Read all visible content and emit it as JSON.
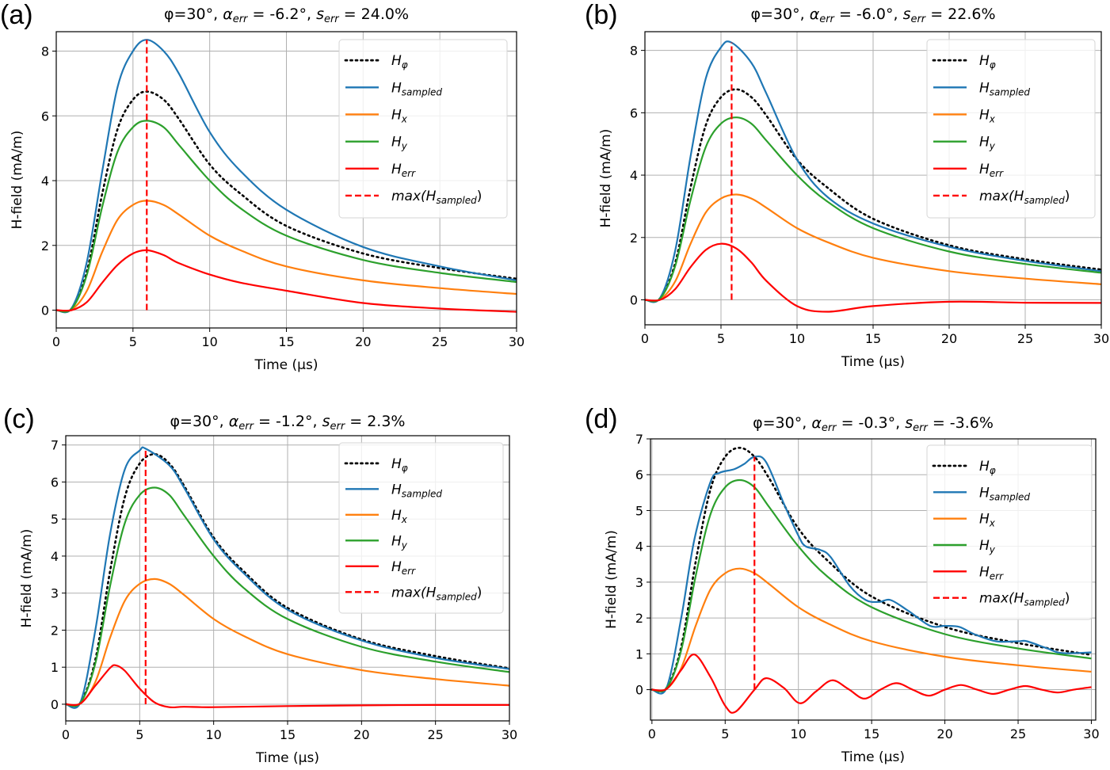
{
  "figure": {
    "colors": {
      "H_phi": "#000000",
      "H_sampled": "#1f77b4",
      "H_x": "#ff7f0e",
      "H_y": "#2ca02c",
      "H_err": "#ff0000",
      "max_line": "#ff0000",
      "grid": "#b0b0b0"
    }
  },
  "chart_data": [
    {
      "panel": "(a)",
      "type": "line",
      "title": "φ=30°, α_err = -6.2°, s_err = 24.0%",
      "title_parts": {
        "phi": "φ=30°, ",
        "alpha": "α",
        "alpha_sub": "err",
        "alpha_val": " = -6.2°, ",
        "s": "s",
        "s_sub": "err",
        "s_val": " = 24.0%"
      },
      "xlabel": "Time (µs)",
      "ylabel": "H-field (mA/m)",
      "xlim": [
        0,
        30
      ],
      "ylim": [
        -0.55,
        8.6
      ],
      "xticks": [
        0,
        5,
        10,
        15,
        20,
        25,
        30
      ],
      "yticks": [
        0,
        2,
        4,
        6,
        8
      ],
      "grid": true,
      "legend_position": "top-right",
      "legend": [
        {
          "main": "H",
          "sub": "φ",
          "style": "dotted",
          "series": "H_phi"
        },
        {
          "main": "H",
          "sub": "sampled",
          "style": "solid",
          "series": "H_sampled"
        },
        {
          "main": "H",
          "sub": "x",
          "style": "solid",
          "series": "H_x"
        },
        {
          "main": "H",
          "sub": "y",
          "style": "solid",
          "series": "H_y"
        },
        {
          "main": "H",
          "sub": "err",
          "style": "solid",
          "series": "H_err"
        },
        {
          "main": "max(H",
          "sub": "sampled",
          "tail": ")",
          "style": "dashed",
          "series": "max_line"
        }
      ],
      "max_time_us": 5.9,
      "series": [
        {
          "name": "H_phi",
          "x": [
            0,
            1,
            2,
            3,
            4,
            5,
            5.9,
            7,
            8,
            10,
            12,
            15,
            20,
            25,
            30
          ],
          "y": [
            0,
            0.05,
            1.2,
            3.6,
            5.6,
            6.5,
            6.75,
            6.5,
            5.9,
            4.5,
            3.6,
            2.6,
            1.75,
            1.3,
            0.97
          ]
        },
        {
          "name": "H_sampled",
          "x": [
            0,
            1,
            2,
            3,
            4,
            5,
            5.9,
            7,
            8,
            10,
            12,
            15,
            20,
            25,
            30
          ],
          "y": [
            0,
            0.06,
            1.5,
            4.3,
            6.9,
            8.0,
            8.35,
            8.0,
            7.3,
            5.5,
            4.3,
            3.1,
            1.95,
            1.35,
            0.92
          ]
        },
        {
          "name": "H_x",
          "x": [
            0,
            1,
            2,
            3,
            4,
            5,
            5.9,
            7,
            8,
            10,
            12,
            15,
            20,
            25,
            30
          ],
          "y": [
            0,
            0.02,
            0.6,
            1.8,
            2.8,
            3.25,
            3.38,
            3.25,
            2.95,
            2.3,
            1.85,
            1.35,
            0.92,
            0.68,
            0.5
          ]
        },
        {
          "name": "H_y",
          "x": [
            0,
            1,
            2,
            3,
            4,
            5,
            5.9,
            7,
            8,
            10,
            12,
            15,
            20,
            25,
            30
          ],
          "y": [
            0,
            0.04,
            1.1,
            3.2,
            4.9,
            5.65,
            5.85,
            5.65,
            5.1,
            4.0,
            3.15,
            2.3,
            1.55,
            1.15,
            0.87
          ]
        },
        {
          "name": "H_err",
          "x": [
            0,
            1,
            2,
            3,
            4,
            5,
            5.9,
            7,
            8,
            10,
            12,
            15,
            20,
            25,
            30
          ],
          "y": [
            0,
            0.0,
            0.25,
            0.85,
            1.4,
            1.75,
            1.85,
            1.7,
            1.45,
            1.1,
            0.85,
            0.6,
            0.22,
            0.05,
            -0.05
          ]
        }
      ]
    },
    {
      "panel": "(b)",
      "type": "line",
      "title": "φ=30°, α_err = -6.0°, s_err = 22.6%",
      "title_parts": {
        "phi": "φ=30°, ",
        "alpha": "α",
        "alpha_sub": "err",
        "alpha_val": " = -6.0°, ",
        "s": "s",
        "s_sub": "err",
        "s_val": " = 22.6%"
      },
      "xlabel": "Time (µs)",
      "ylabel": "H-field (mA/m)",
      "xlim": [
        0,
        30
      ],
      "ylim": [
        -0.8,
        8.6
      ],
      "xticks": [
        0,
        5,
        10,
        15,
        20,
        25,
        30
      ],
      "yticks": [
        0,
        2,
        4,
        6,
        8
      ],
      "grid": true,
      "legend_position": "top-right",
      "legend": [
        {
          "main": "H",
          "sub": "φ",
          "style": "dotted",
          "series": "H_phi"
        },
        {
          "main": "H",
          "sub": "sampled",
          "style": "solid",
          "series": "H_sampled"
        },
        {
          "main": "H",
          "sub": "x",
          "style": "solid",
          "series": "H_x"
        },
        {
          "main": "H",
          "sub": "y",
          "style": "solid",
          "series": "H_y"
        },
        {
          "main": "H",
          "sub": "err",
          "style": "solid",
          "series": "H_err"
        },
        {
          "main": "max(H",
          "sub": "sampled",
          "tail": ")",
          "style": "dashed",
          "series": "max_line"
        }
      ],
      "max_time_us": 5.7,
      "series": [
        {
          "name": "H_phi",
          "x": [
            0,
            1,
            2,
            3,
            4,
            5,
            6,
            7,
            8,
            10,
            12,
            15,
            20,
            25,
            30
          ],
          "y": [
            0,
            0.05,
            1.2,
            3.6,
            5.6,
            6.5,
            6.75,
            6.5,
            5.9,
            4.5,
            3.6,
            2.6,
            1.75,
            1.3,
            0.97
          ]
        },
        {
          "name": "H_sampled",
          "x": [
            0,
            1,
            2,
            3,
            4,
            5,
            5.7,
            7,
            8,
            10,
            12,
            15,
            20,
            25,
            30
          ],
          "y": [
            0,
            0.06,
            1.6,
            4.6,
            7.1,
            8.1,
            8.25,
            7.6,
            6.6,
            4.5,
            3.3,
            2.45,
            1.7,
            1.25,
            0.92
          ]
        },
        {
          "name": "H_x",
          "x": [
            0,
            1,
            2,
            3,
            4,
            5,
            6,
            7,
            8,
            10,
            12,
            15,
            20,
            25,
            30
          ],
          "y": [
            0,
            0.02,
            0.6,
            1.8,
            2.8,
            3.25,
            3.38,
            3.25,
            2.95,
            2.3,
            1.85,
            1.35,
            0.92,
            0.68,
            0.5
          ]
        },
        {
          "name": "H_y",
          "x": [
            0,
            1,
            2,
            3,
            4,
            5,
            6,
            7,
            8,
            10,
            12,
            15,
            20,
            25,
            30
          ],
          "y": [
            0,
            0.04,
            1.1,
            3.2,
            4.9,
            5.65,
            5.85,
            5.65,
            5.1,
            4.0,
            3.15,
            2.3,
            1.55,
            1.15,
            0.87
          ]
        },
        {
          "name": "H_err",
          "x": [
            0,
            1,
            2,
            3,
            4,
            5,
            6,
            7,
            8,
            10,
            12,
            15,
            20,
            25,
            30
          ],
          "y": [
            0,
            0.0,
            0.35,
            1.05,
            1.6,
            1.8,
            1.65,
            1.2,
            0.6,
            -0.2,
            -0.38,
            -0.2,
            -0.06,
            -0.09,
            -0.1
          ]
        }
      ]
    },
    {
      "panel": "(c)",
      "type": "line",
      "title": "φ=30°, α_err = -1.2°, s_err = 2.3%",
      "title_parts": {
        "phi": "φ=30°, ",
        "alpha": "α",
        "alpha_sub": "err",
        "alpha_val": " = -1.2°, ",
        "s": "s",
        "s_sub": "err",
        "s_val": " = 2.3%"
      },
      "xlabel": "Time (µs)",
      "ylabel": "H-field (mA/m)",
      "xlim": [
        0,
        30
      ],
      "ylim": [
        -0.45,
        7.25
      ],
      "xticks": [
        0,
        5,
        10,
        15,
        20,
        25,
        30
      ],
      "yticks": [
        0,
        1,
        2,
        3,
        4,
        5,
        6,
        7
      ],
      "grid": true,
      "legend_position": "top-right",
      "legend": [
        {
          "main": "H",
          "sub": "φ",
          "style": "dotted",
          "series": "H_phi"
        },
        {
          "main": "H",
          "sub": "sampled",
          "style": "solid",
          "series": "H_sampled"
        },
        {
          "main": "H",
          "sub": "x",
          "style": "solid",
          "series": "H_x"
        },
        {
          "main": "H",
          "sub": "y",
          "style": "solid",
          "series": "H_y"
        },
        {
          "main": "H",
          "sub": "err",
          "style": "solid",
          "series": "H_err"
        },
        {
          "main": "max(H",
          "sub": "sampled",
          "tail": ")",
          "style": "dashed",
          "series": "max_line"
        }
      ],
      "max_time_us": 5.4,
      "series": [
        {
          "name": "H_phi",
          "x": [
            0,
            1,
            2,
            3,
            4,
            5,
            6,
            7,
            8,
            10,
            12,
            15,
            20,
            25,
            30
          ],
          "y": [
            0,
            0.05,
            1.2,
            3.6,
            5.6,
            6.5,
            6.75,
            6.5,
            5.9,
            4.5,
            3.6,
            2.6,
            1.75,
            1.3,
            0.97
          ]
        },
        {
          "name": "H_sampled",
          "x": [
            0,
            1,
            2,
            3,
            4,
            5,
            5.4,
            7,
            8,
            10,
            12,
            15,
            20,
            25,
            30
          ],
          "y": [
            0,
            0.06,
            2.0,
            4.6,
            6.35,
            6.85,
            6.9,
            6.45,
            5.85,
            4.45,
            3.55,
            2.55,
            1.72,
            1.25,
            0.95
          ]
        },
        {
          "name": "H_x",
          "x": [
            0,
            1,
            2,
            3,
            4,
            5,
            6,
            7,
            8,
            10,
            12,
            15,
            20,
            25,
            30
          ],
          "y": [
            0,
            0.02,
            0.6,
            1.8,
            2.8,
            3.25,
            3.38,
            3.25,
            2.95,
            2.3,
            1.85,
            1.35,
            0.92,
            0.68,
            0.5
          ]
        },
        {
          "name": "H_y",
          "x": [
            0,
            1,
            2,
            3,
            4,
            5,
            6,
            7,
            8,
            10,
            12,
            15,
            20,
            25,
            30
          ],
          "y": [
            0,
            0.04,
            1.1,
            3.2,
            4.9,
            5.65,
            5.85,
            5.65,
            5.1,
            4.0,
            3.15,
            2.3,
            1.55,
            1.15,
            0.87
          ]
        },
        {
          "name": "H_err",
          "x": [
            0,
            1,
            2,
            3,
            3.4,
            4,
            5,
            6,
            7,
            8,
            10,
            15,
            20,
            25,
            30
          ],
          "y": [
            0,
            0.02,
            0.5,
            0.98,
            1.05,
            0.9,
            0.42,
            0.05,
            -0.08,
            -0.07,
            -0.08,
            -0.05,
            -0.03,
            -0.02,
            -0.02
          ]
        }
      ]
    },
    {
      "panel": "(d)",
      "type": "line",
      "title": "φ=30°, α_err = -0.3°, s_err = -3.6%",
      "title_parts": {
        "phi": "φ=30°, ",
        "alpha": "α",
        "alpha_sub": "err",
        "alpha_val": " = -0.3°, ",
        "s": "s",
        "s_sub": "err",
        "s_val": " = -3.6%"
      },
      "xlabel": "Time (µs)",
      "ylabel": "H-field (mA/m)",
      "xlim": [
        -0.1,
        30.3
      ],
      "ylim": [
        -0.85,
        7.0
      ],
      "xticks": [
        0,
        5,
        10,
        15,
        20,
        25,
        30
      ],
      "yticks": [
        0,
        1,
        2,
        3,
        4,
        5,
        6,
        7
      ],
      "grid": true,
      "legend_position": "top-right",
      "legend": [
        {
          "main": "H",
          "sub": "φ",
          "style": "dotted",
          "series": "H_phi"
        },
        {
          "main": "H",
          "sub": "sampled",
          "style": "solid",
          "series": "H_sampled"
        },
        {
          "main": "H",
          "sub": "x",
          "style": "solid",
          "series": "H_x"
        },
        {
          "main": "H",
          "sub": "y",
          "style": "solid",
          "series": "H_y"
        },
        {
          "main": "H",
          "sub": "err",
          "style": "solid",
          "series": "H_err"
        },
        {
          "main": "max(H",
          "sub": "sampled",
          "tail": ")",
          "style": "dashed",
          "series": "max_line"
        }
      ],
      "max_time_us": 7.0,
      "series": [
        {
          "name": "H_phi",
          "x": [
            0,
            1,
            2,
            3,
            4,
            5,
            6,
            7,
            8,
            10,
            12,
            15,
            20,
            25,
            30
          ],
          "y": [
            0,
            0.05,
            1.2,
            3.6,
            5.6,
            6.5,
            6.75,
            6.5,
            5.9,
            4.5,
            3.6,
            2.6,
            1.75,
            1.3,
            0.97
          ]
        },
        {
          "name": "H_sampled",
          "x": [
            0,
            1,
            2,
            2.9,
            4,
            4.6,
            5.6,
            6.3,
            7,
            7.8,
            9,
            10,
            10.5,
            11.5,
            12.2,
            13.5,
            14.6,
            15.5,
            16.3,
            17.5,
            19,
            20,
            21,
            22,
            23.5,
            25,
            25.6,
            27,
            28,
            30
          ],
          "y": [
            0,
            0.05,
            2.0,
            4.2,
            5.8,
            6.05,
            6.15,
            6.3,
            6.5,
            6.35,
            5.2,
            4.3,
            4.0,
            3.9,
            3.7,
            2.9,
            2.5,
            2.45,
            2.5,
            2.2,
            1.78,
            1.78,
            1.75,
            1.55,
            1.35,
            1.35,
            1.35,
            1.15,
            1.02,
            1.04
          ]
        },
        {
          "name": "H_x",
          "x": [
            0,
            1,
            2,
            3,
            4,
            5,
            6,
            7,
            8,
            10,
            12,
            15,
            20,
            25,
            30
          ],
          "y": [
            0,
            0.02,
            0.6,
            1.8,
            2.8,
            3.25,
            3.38,
            3.25,
            2.95,
            2.3,
            1.85,
            1.35,
            0.92,
            0.68,
            0.5
          ]
        },
        {
          "name": "H_y",
          "x": [
            0,
            1,
            2,
            3,
            4,
            5,
            6,
            7,
            8,
            10,
            12,
            15,
            20,
            25,
            30
          ],
          "y": [
            0,
            0.04,
            1.1,
            3.2,
            4.9,
            5.65,
            5.85,
            5.65,
            5.1,
            4.0,
            3.15,
            2.3,
            1.55,
            1.15,
            0.87
          ]
        },
        {
          "name": "H_err",
          "x": [
            0,
            1,
            2,
            2.9,
            4,
            5,
            5.7,
            7,
            7.8,
            9,
            10.1,
            11.2,
            12.3,
            13.4,
            14.5,
            15.6,
            16.7,
            17.8,
            18.9,
            20,
            21.1,
            22.2,
            23.3,
            24.4,
            25.5,
            26.6,
            27.7,
            28.8,
            30
          ],
          "y": [
            0,
            0.02,
            0.55,
            0.98,
            0.35,
            -0.45,
            -0.62,
            0.0,
            0.32,
            0.05,
            -0.38,
            -0.05,
            0.26,
            0.02,
            -0.25,
            0.0,
            0.18,
            0.0,
            -0.17,
            0.0,
            0.13,
            0.0,
            -0.12,
            0.0,
            0.1,
            0.0,
            -0.08,
            0.0,
            0.07
          ]
        }
      ]
    }
  ]
}
